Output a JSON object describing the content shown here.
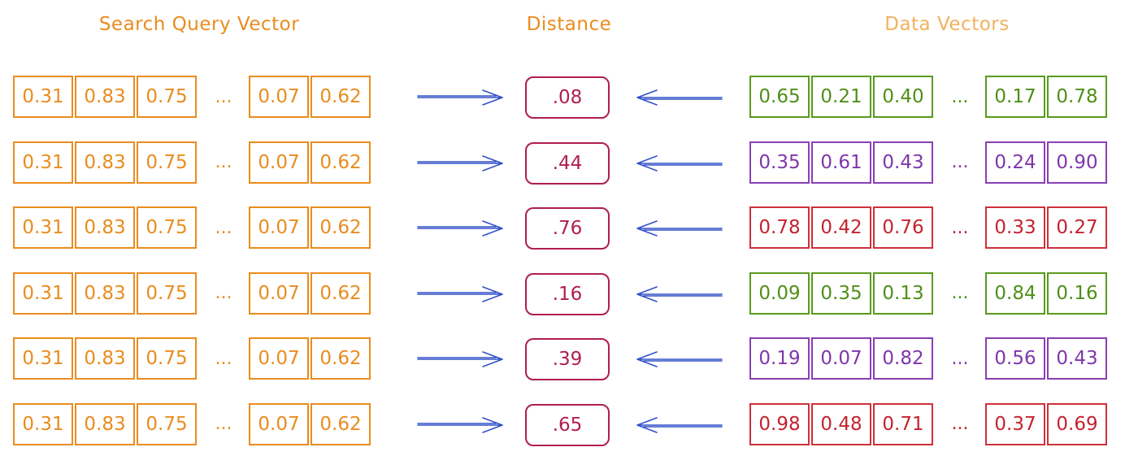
{
  "headers": {
    "query": "Search Query Vector",
    "distance": "Distance",
    "data": "Data Vectors"
  },
  "ellipsis": "...",
  "colors": {
    "query": "#e98c1f",
    "distance": "#b01e4f",
    "arrow": "#3352c8",
    "green": "#4f8f17",
    "purple": "#7f36ab",
    "red": "#c4222f"
  },
  "rows": [
    {
      "query": [
        "0.31",
        "0.83",
        "0.75",
        "0.07",
        "0.62"
      ],
      "distance": ".08",
      "data": [
        "0.65",
        "0.21",
        "0.40",
        "0.17",
        "0.78"
      ],
      "data_color": "green"
    },
    {
      "query": [
        "0.31",
        "0.83",
        "0.75",
        "0.07",
        "0.62"
      ],
      "distance": ".44",
      "data": [
        "0.35",
        "0.61",
        "0.43",
        "0.24",
        "0.90"
      ],
      "data_color": "purple"
    },
    {
      "query": [
        "0.31",
        "0.83",
        "0.75",
        "0.07",
        "0.62"
      ],
      "distance": ".76",
      "data": [
        "0.78",
        "0.42",
        "0.76",
        "0.33",
        "0.27"
      ],
      "data_color": "red"
    },
    {
      "query": [
        "0.31",
        "0.83",
        "0.75",
        "0.07",
        "0.62"
      ],
      "distance": ".16",
      "data": [
        "0.09",
        "0.35",
        "0.13",
        "0.84",
        "0.16"
      ],
      "data_color": "green"
    },
    {
      "query": [
        "0.31",
        "0.83",
        "0.75",
        "0.07",
        "0.62"
      ],
      "distance": ".39",
      "data": [
        "0.19",
        "0.07",
        "0.82",
        "0.56",
        "0.43"
      ],
      "data_color": "purple"
    },
    {
      "query": [
        "0.31",
        "0.83",
        "0.75",
        "0.07",
        "0.62"
      ],
      "distance": ".65",
      "data": [
        "0.98",
        "0.48",
        "0.71",
        "0.37",
        "0.69"
      ],
      "data_color": "red"
    }
  ]
}
